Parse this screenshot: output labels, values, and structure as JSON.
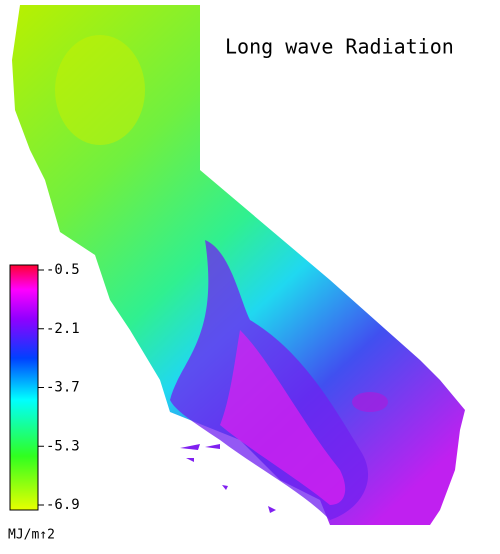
{
  "title": "Long wave Radiation",
  "colorbar": {
    "lim": [
      -6.9,
      -0.5
    ],
    "ticks": [
      -0.5,
      -2.1,
      -3.7,
      -5.3,
      -6.9
    ],
    "unit": "MJ/m↑2"
  }
}
